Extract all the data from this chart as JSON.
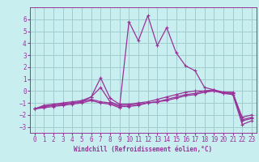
{
  "xlabel": "Windchill (Refroidissement éolien,°C)",
  "background_color": "#c8eef0",
  "grid_color": "#a0ccd0",
  "line_color": "#993399",
  "x": [
    0,
    1,
    2,
    3,
    4,
    5,
    6,
    7,
    8,
    9,
    10,
    11,
    12,
    13,
    14,
    15,
    16,
    17,
    18,
    19,
    20,
    21,
    22,
    23
  ],
  "series": [
    [
      -1.5,
      -1.2,
      -1.1,
      -1.0,
      -0.9,
      -0.8,
      -0.5,
      1.1,
      -0.6,
      -1.1,
      -1.1,
      -1.0,
      -0.9,
      -0.7,
      -0.5,
      -0.3,
      -0.1,
      0.0,
      0.0,
      0.0,
      -0.2,
      -0.2,
      -2.2,
      -2.0
    ],
    [
      -1.5,
      -1.3,
      -1.2,
      -1.1,
      -1.0,
      -0.9,
      -0.5,
      0.3,
      -0.9,
      -1.2,
      -1.2,
      -1.1,
      -1.0,
      -0.9,
      -0.7,
      -0.5,
      -0.3,
      -0.2,
      0.0,
      0.1,
      -0.1,
      -0.1,
      -2.4,
      -2.2
    ],
    [
      -1.5,
      -1.3,
      -1.2,
      -1.1,
      -1.0,
      -0.9,
      -0.7,
      -0.9,
      -1.0,
      -1.3,
      -1.3,
      -1.2,
      -1.0,
      -0.9,
      -0.8,
      -0.6,
      -0.4,
      -0.3,
      -0.1,
      0.0,
      -0.1,
      -0.2,
      -2.5,
      -2.3
    ],
    [
      -1.5,
      -1.4,
      -1.3,
      -1.2,
      -1.1,
      -1.0,
      -0.8,
      -1.0,
      -1.1,
      -1.4,
      5.8,
      4.2,
      6.3,
      3.8,
      5.3,
      3.2,
      2.1,
      1.7,
      0.3,
      0.1,
      -0.2,
      -0.3,
      -2.8,
      -2.5
    ]
  ],
  "xlim": [
    -0.5,
    23.5
  ],
  "ylim": [
    -3.5,
    7.0
  ],
  "yticks": [
    -3,
    -2,
    -1,
    0,
    1,
    2,
    3,
    4,
    5,
    6
  ],
  "xticks": [
    0,
    1,
    2,
    3,
    4,
    5,
    6,
    7,
    8,
    9,
    10,
    11,
    12,
    13,
    14,
    15,
    16,
    17,
    18,
    19,
    20,
    21,
    22,
    23
  ],
  "tick_fontsize": 5.5,
  "xlabel_fontsize": 5.5
}
